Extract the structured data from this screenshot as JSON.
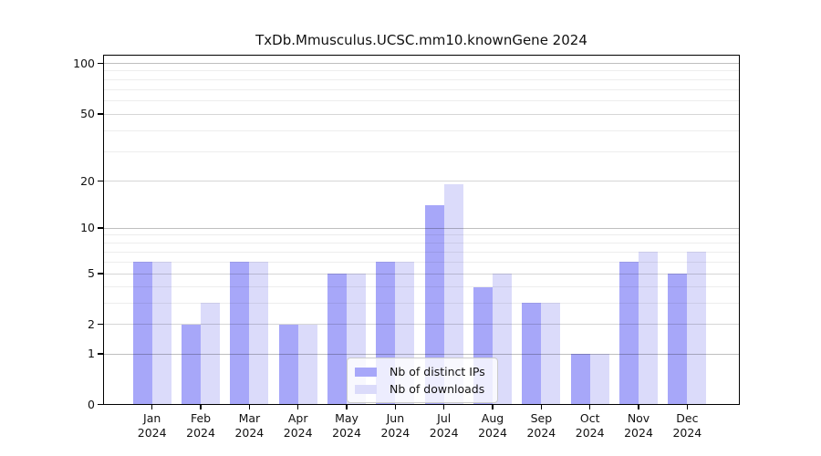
{
  "title": "TxDb.Mmusculus.UCSC.mm10.knownGene 2024",
  "legend": {
    "items": [
      {
        "label": "Nb of distinct IPs",
        "series": "ips"
      },
      {
        "label": "Nb of downloads",
        "series": "downloads"
      }
    ]
  },
  "colors": {
    "ips_bar": "#a7a7f9",
    "downloads_bar": "#dbdbfa",
    "grid_decade": "rgba(0,0,0,0.25)",
    "grid_major": "rgba(0,0,0,0.16)",
    "grid_minor": "rgba(0,0,0,0.07)"
  },
  "chart_data": {
    "type": "bar",
    "title": "TxDb.Mmusculus.UCSC.mm10.knownGene 2024",
    "categories": [
      "Jan",
      "Feb",
      "Mar",
      "Apr",
      "May",
      "Jun",
      "Jul",
      "Aug",
      "Sep",
      "Oct",
      "Nov",
      "Dec"
    ],
    "year_label": "2024",
    "series": [
      {
        "name": "Nb of distinct IPs",
        "color": "#a7a7f9",
        "values": [
          6,
          2,
          6,
          2,
          5,
          6,
          14,
          4,
          3,
          1,
          6,
          5
        ]
      },
      {
        "name": "Nb of downloads",
        "color": "#dbdbfa",
        "values": [
          6,
          3,
          6,
          2,
          5,
          6,
          19,
          5,
          3,
          1,
          7,
          7
        ]
      }
    ],
    "xlabel": "",
    "ylabel": "",
    "yscale": "log1p",
    "ylim": [
      0,
      110
    ],
    "y_ticks": [
      0,
      1,
      2,
      5,
      10,
      20,
      50,
      100
    ],
    "y_minor_ticks": [
      3,
      4,
      6,
      7,
      8,
      9,
      30,
      40,
      60,
      70,
      80,
      90
    ],
    "grid": "horizontal",
    "legend_position": "lower-center"
  }
}
